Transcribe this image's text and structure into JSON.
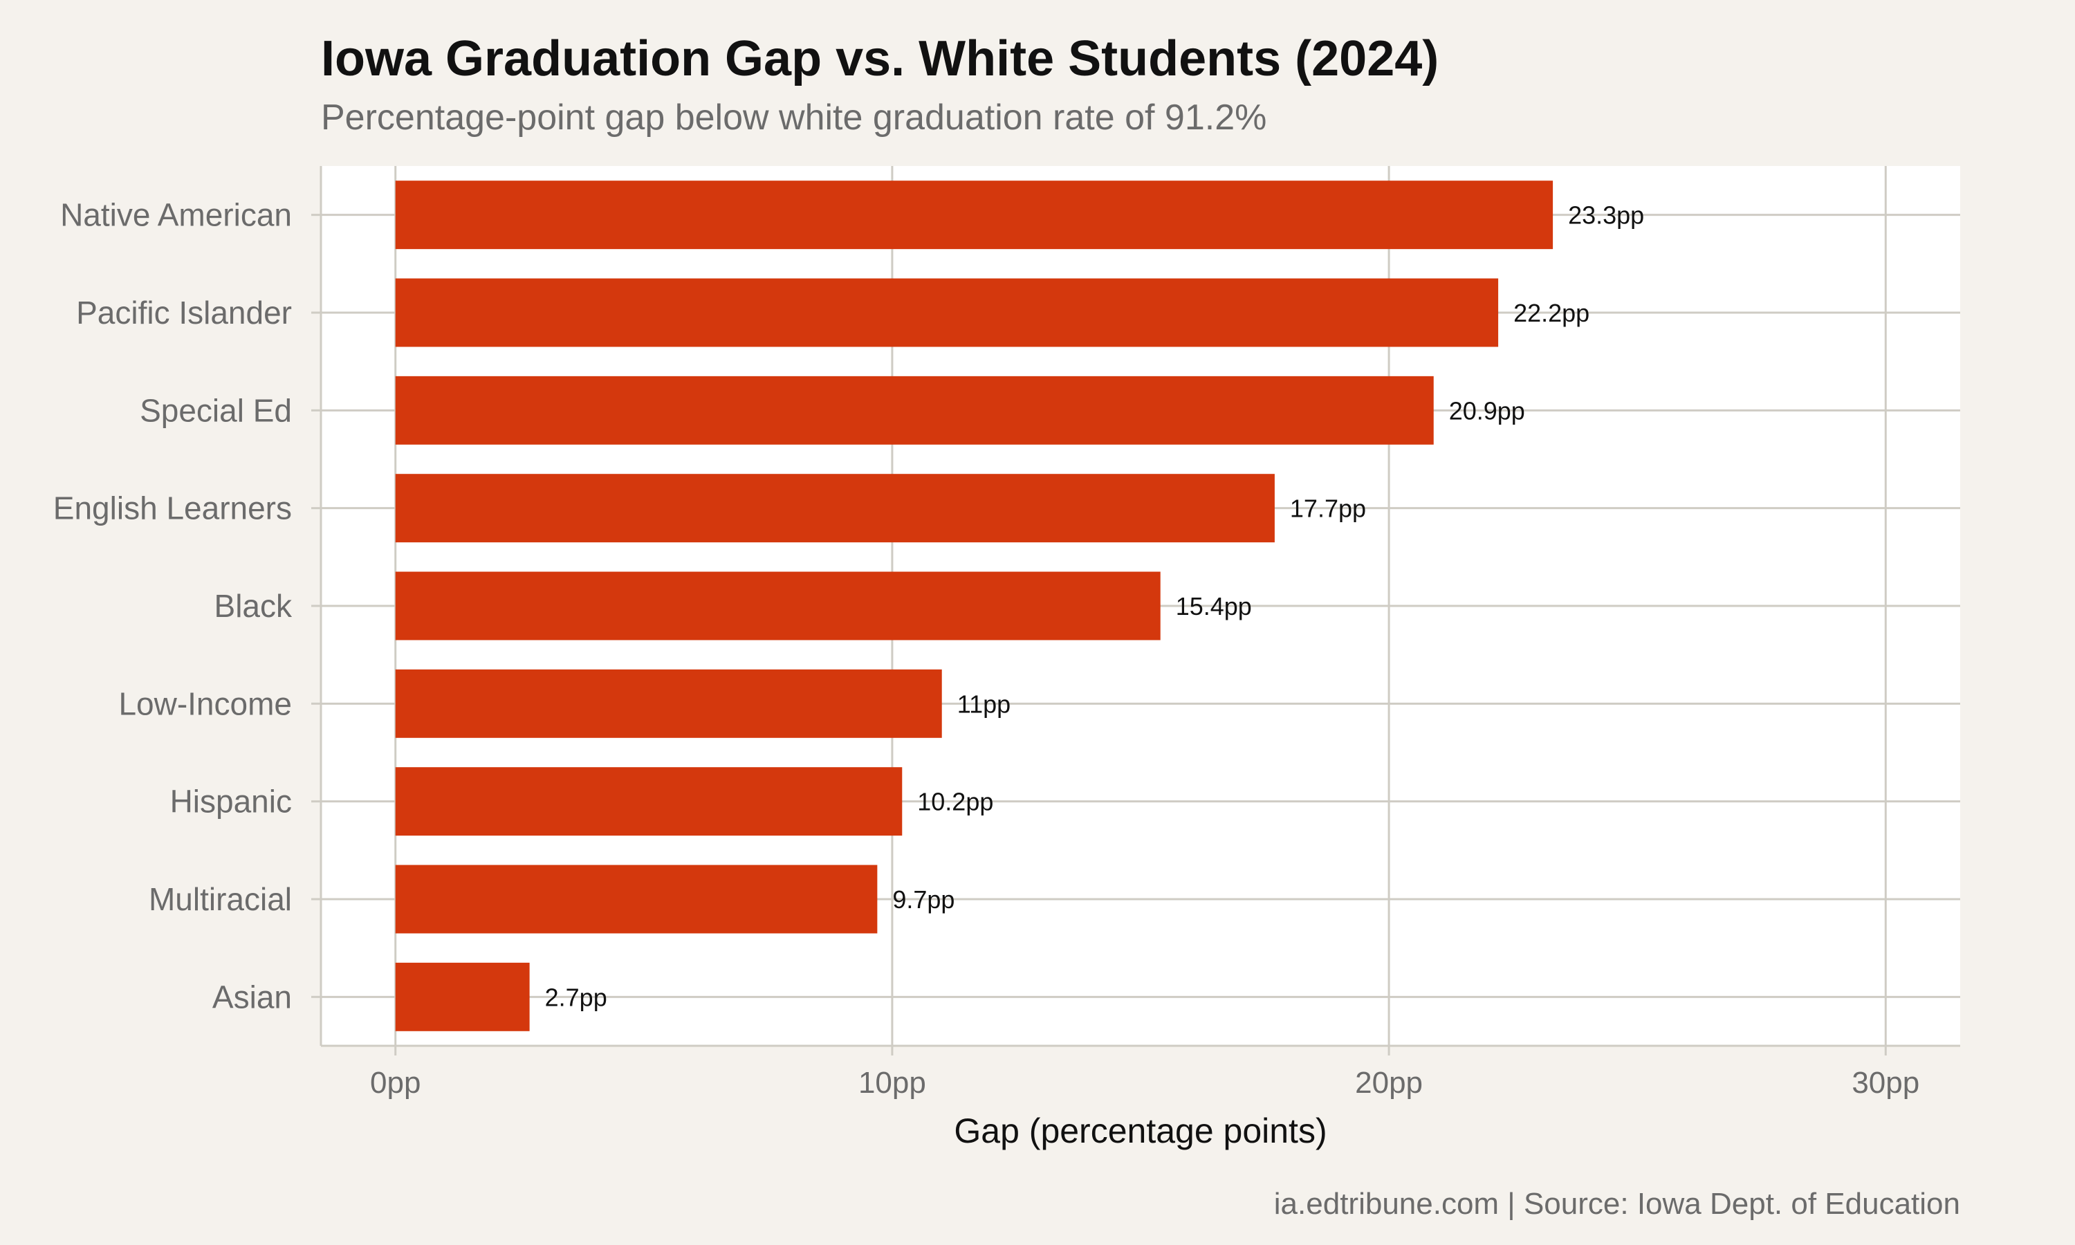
{
  "chart_data": {
    "type": "bar",
    "orientation": "horizontal",
    "title": "Iowa Graduation Gap vs. White Students (2024)",
    "subtitle": "Percentage-point gap below white graduation rate of 91.2%",
    "caption": "ia.edtribune.com | Source: Iowa Dept. of Education",
    "xlabel": "Gap (percentage points)",
    "ylabel": "",
    "categories": [
      "Native American",
      "Pacific Islander",
      "Special Ed",
      "English Learners",
      "Black",
      "Low-Income",
      "Hispanic",
      "Multiracial",
      "Asian"
    ],
    "values": [
      23.3,
      22.2,
      20.9,
      17.7,
      15.4,
      11,
      10.2,
      9.7,
      2.7
    ],
    "value_labels": [
      "23.3pp",
      "22.2pp",
      "20.9pp",
      "17.7pp",
      "15.4pp",
      "11pp",
      "10.2pp",
      "9.7pp",
      "2.7pp"
    ],
    "xlim": [
      -1.5,
      31.5
    ],
    "xticks": [
      0,
      10,
      20,
      30
    ],
    "xtick_labels": [
      "0pp",
      "10pp",
      "20pp",
      "30pp"
    ],
    "grid": true,
    "legend": "none",
    "colors": {
      "bar": "#d4380d",
      "background": "#f5f2ed",
      "panel": "#ffffff",
      "grid": "#cfccc4"
    }
  }
}
